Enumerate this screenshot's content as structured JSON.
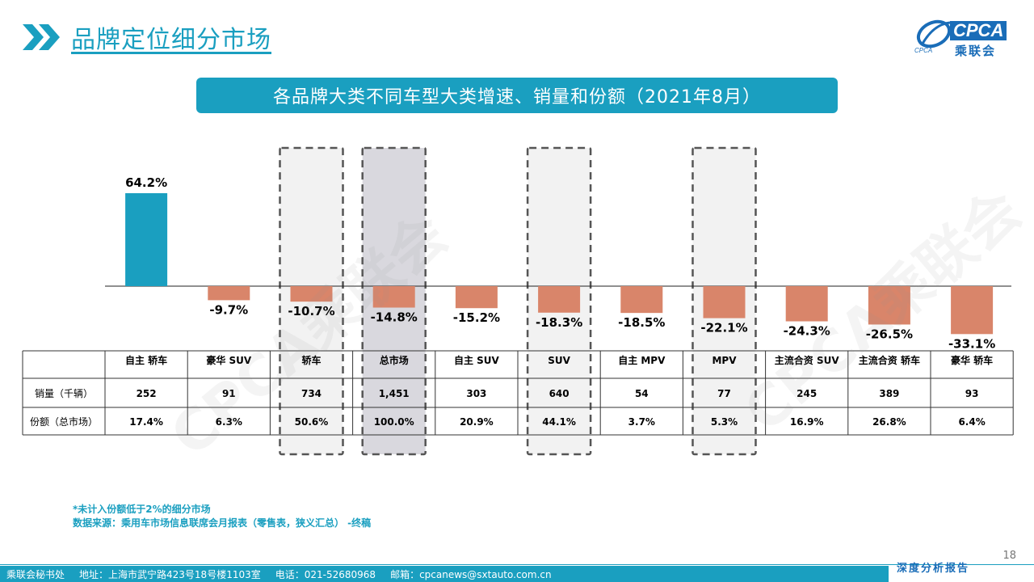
{
  "header": {
    "title": "品牌定位细分市场"
  },
  "logo": {
    "text": "CPCA",
    "subtitle": "乘联会",
    "small": "CPCA"
  },
  "chart_data": {
    "type": "bar",
    "title": "各品牌大类不同车型大类增速、销量和份额（2021年8月）",
    "categories": [
      "自主 轿车",
      "豪华 SUV",
      "轿车",
      "总市场",
      "自主 SUV",
      "SUV",
      "自主 MPV",
      "MPV",
      "主流合资 SUV",
      "主流合资 轿车",
      "豪华 轿车"
    ],
    "values": [
      64.2,
      -9.7,
      -10.7,
      -14.8,
      -15.2,
      -18.3,
      -18.5,
      -22.1,
      -24.3,
      -26.5,
      -33.1
    ],
    "value_labels": [
      "64.2%",
      "-9.7%",
      "-10.7%",
      "-14.8%",
      "-15.2%",
      "-18.3%",
      "-18.5%",
      "-22.1%",
      "-24.3%",
      "-26.5%",
      "-33.1%"
    ],
    "highlighted": [
      false,
      false,
      true,
      true,
      false,
      true,
      false,
      true,
      false,
      false,
      false
    ],
    "positive_color": "#1a9fc0",
    "negative_color": "#d9856a",
    "highlight_fill": "#d9d8de",
    "table": {
      "rows": [
        {
          "label": "销量（千辆）",
          "values": [
            "252",
            "91",
            "734",
            "1,451",
            "303",
            "640",
            "54",
            "77",
            "245",
            "389",
            "93"
          ]
        },
        {
          "label": "份额（总市场）",
          "values": [
            "17.4%",
            "6.3%",
            "50.6%",
            "100.0%",
            "20.9%",
            "44.1%",
            "3.7%",
            "5.3%",
            "16.9%",
            "26.8%",
            "6.4%"
          ]
        }
      ]
    }
  },
  "notes": {
    "line1": "*未计入份额低于2%的细分市场",
    "line2": "数据来源：乘用车市场信息联席会月报表（零售表，狭义汇总）  -终稿"
  },
  "page_number": "18",
  "footer": {
    "org": "乘联会秘书处",
    "address": "地址：上海市武宁路423号18号楼1103室",
    "phone": "电话：021-52680968",
    "email": "邮箱：cpcanews@sxtauto.com.cn",
    "tag": "深度分析报告"
  },
  "watermark": {
    "text": "CPCA乘联会"
  }
}
